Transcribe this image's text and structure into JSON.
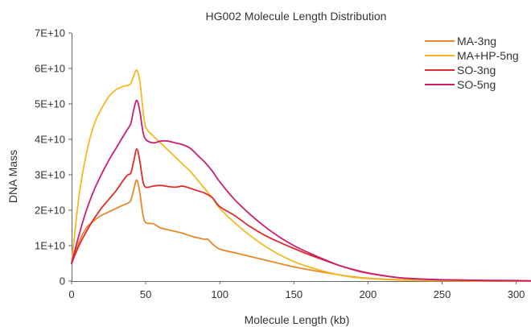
{
  "chart_data": {
    "type": "line",
    "title": "HG002 Molecule Length Distribution",
    "xlabel": "Molecule Length (kb)",
    "ylabel": "DNA Mass",
    "xlim": [
      0,
      310
    ],
    "ylim": [
      0,
      70000000000
    ],
    "x_ticks": [
      0,
      50,
      100,
      150,
      200,
      250,
      300
    ],
    "x_tick_labels": [
      "0",
      "50",
      "100",
      "150",
      "200",
      "250",
      "300"
    ],
    "y_ticks": [
      0,
      10000000000,
      20000000000,
      30000000000,
      40000000000,
      50000000000,
      60000000000,
      70000000000
    ],
    "y_tick_labels": [
      "0",
      "1E+10",
      "2E+10",
      "3E+10",
      "4E+10",
      "5E+10",
      "6E+10",
      "7E+10"
    ],
    "grid": false,
    "legend_position": "top-right",
    "series": [
      {
        "name": "MA-3ng",
        "color": "#e8872a",
        "x": [
          0,
          5,
          10,
          15,
          20,
          25,
          30,
          35,
          38,
          40,
          42,
          44,
          46,
          48,
          50,
          55,
          60,
          65,
          70,
          75,
          80,
          85,
          90,
          92,
          95,
          100,
          110,
          120,
          130,
          140,
          150,
          160,
          170,
          180,
          190,
          200,
          220,
          240,
          260,
          280,
          300,
          310
        ],
        "y": [
          5000000000,
          11000000000,
          15000000000,
          17000000000,
          18500000000,
          19500000000,
          20500000000,
          21500000000,
          22000000000,
          22800000000,
          26000000000,
          28500000000,
          25000000000,
          19000000000,
          16500000000,
          16200000000,
          15000000000,
          14500000000,
          14000000000,
          13500000000,
          12800000000,
          12200000000,
          11800000000,
          11800000000,
          10500000000,
          9000000000,
          8000000000,
          7000000000,
          6000000000,
          5000000000,
          4000000000,
          3200000000,
          2500000000,
          1800000000,
          1200000000,
          800000000,
          400000000,
          200000000,
          100000000,
          50000000,
          20000000,
          10000000
        ]
      },
      {
        "name": "MA+HP-5ng",
        "color": "#f5b823",
        "x": [
          0,
          5,
          10,
          15,
          20,
          25,
          30,
          35,
          38,
          40,
          42,
          44,
          46,
          48,
          50,
          55,
          60,
          65,
          70,
          75,
          80,
          85,
          90,
          95,
          100,
          110,
          120,
          130,
          140,
          150,
          160,
          170,
          180,
          190,
          200,
          220,
          240,
          260,
          280,
          300,
          310
        ],
        "y": [
          5000000000,
          24000000000,
          36000000000,
          44000000000,
          48500000000,
          52000000000,
          54000000000,
          55000000000,
          55200000000,
          55800000000,
          58000000000,
          59500000000,
          56500000000,
          49000000000,
          43500000000,
          41000000000,
          39000000000,
          37000000000,
          35000000000,
          33000000000,
          31000000000,
          28500000000,
          26000000000,
          23500000000,
          20500000000,
          16500000000,
          13000000000,
          10000000000,
          7500000000,
          5500000000,
          4000000000,
          2800000000,
          1800000000,
          1100000000,
          700000000,
          300000000,
          150000000,
          70000000,
          30000000,
          10000000,
          5000000
        ]
      },
      {
        "name": "SO-3ng",
        "color": "#de2a2a",
        "x": [
          0,
          5,
          10,
          15,
          20,
          25,
          30,
          35,
          38,
          40,
          42,
          44,
          46,
          48,
          50,
          55,
          60,
          65,
          70,
          75,
          80,
          85,
          90,
          95,
          100,
          110,
          120,
          130,
          140,
          150,
          160,
          170,
          180,
          190,
          200,
          220,
          240,
          260,
          280,
          300,
          310
        ],
        "y": [
          5000000000,
          10000000000,
          14000000000,
          17500000000,
          20500000000,
          23000000000,
          25500000000,
          28500000000,
          30000000000,
          30500000000,
          34000000000,
          37300000000,
          34000000000,
          28500000000,
          26500000000,
          26800000000,
          27000000000,
          26700000000,
          26500000000,
          26800000000,
          26200000000,
          25500000000,
          24800000000,
          23500000000,
          21000000000,
          18500000000,
          15500000000,
          13000000000,
          11000000000,
          9200000000,
          7500000000,
          6000000000,
          4500000000,
          3300000000,
          2300000000,
          1000000000,
          500000000,
          300000000,
          150000000,
          80000000,
          50000000
        ]
      },
      {
        "name": "SO-5ng",
        "color": "#cc1d72",
        "x": [
          0,
          5,
          10,
          15,
          20,
          25,
          30,
          35,
          38,
          40,
          42,
          44,
          46,
          48,
          50,
          55,
          60,
          65,
          70,
          75,
          80,
          85,
          90,
          95,
          100,
          110,
          120,
          130,
          140,
          150,
          160,
          170,
          180,
          190,
          200,
          220,
          240,
          260,
          280,
          300,
          310
        ],
        "y": [
          5000000000,
          13000000000,
          20000000000,
          25500000000,
          30000000000,
          34000000000,
          37500000000,
          41000000000,
          43000000000,
          44500000000,
          48500000000,
          51000000000,
          48000000000,
          42500000000,
          40000000000,
          39000000000,
          39500000000,
          39500000000,
          39000000000,
          38500000000,
          37500000000,
          35500000000,
          33500000000,
          31000000000,
          28000000000,
          23000000000,
          19000000000,
          15500000000,
          12500000000,
          10000000000,
          8000000000,
          6200000000,
          4500000000,
          3200000000,
          2200000000,
          1000000000,
          500000000,
          300000000,
          200000000,
          150000000,
          100000000
        ]
      }
    ]
  }
}
